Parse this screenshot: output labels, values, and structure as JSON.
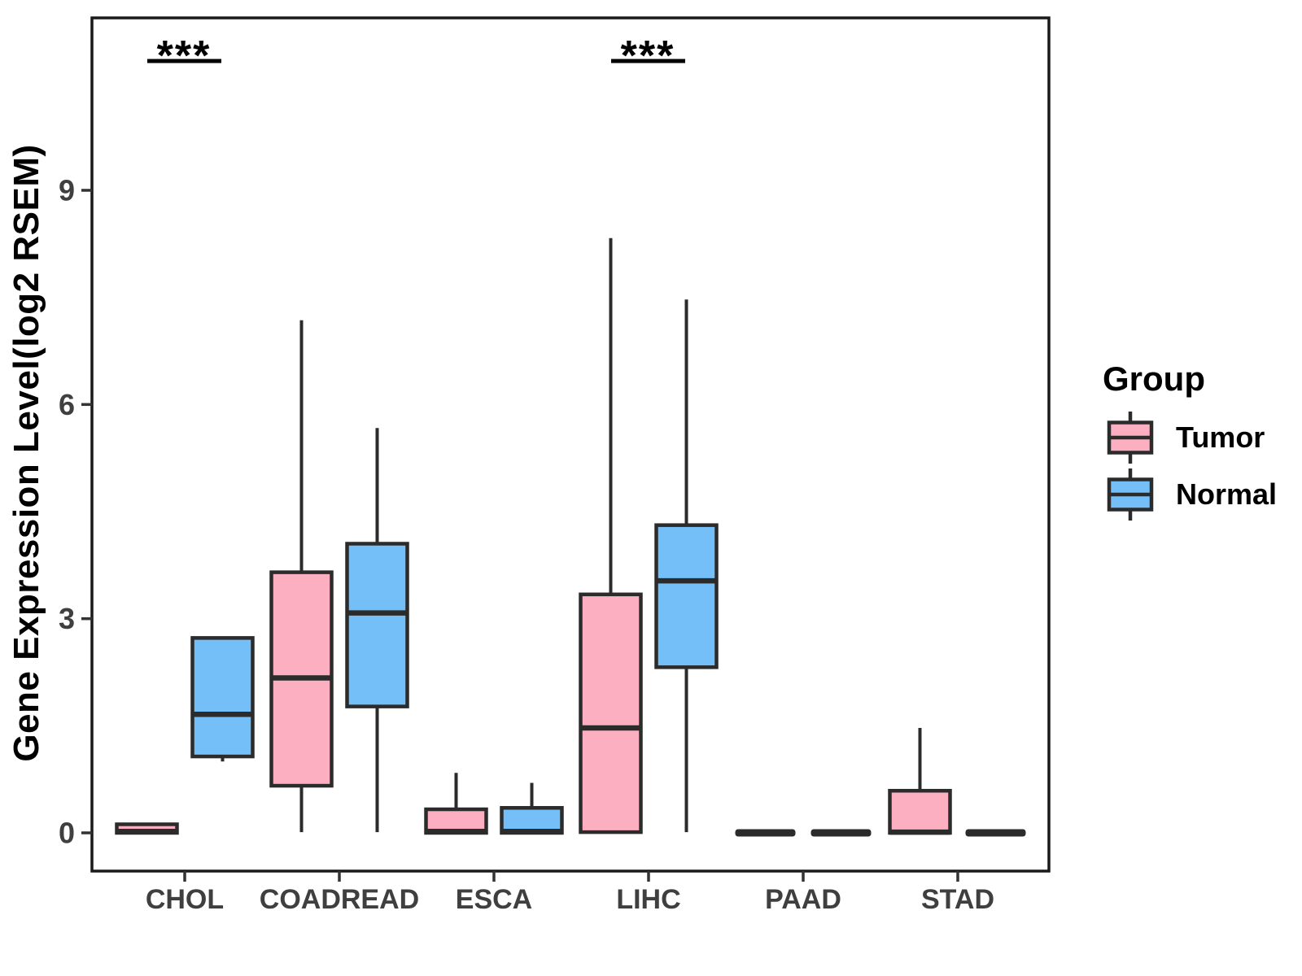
{
  "chart_data": {
    "type": "boxplot",
    "title": "",
    "xlabel": "",
    "ylabel": "Gene Expression Level(log2 RSEM)",
    "ylim": [
      -0.55,
      11.4
    ],
    "yticks": [
      0,
      3,
      6,
      9
    ],
    "grid": false,
    "categories": [
      "CHOL",
      "COADREAD",
      "ESCA",
      "LIHC",
      "PAAD",
      "STAD"
    ],
    "legend": {
      "title": "Group",
      "position": "right",
      "items": [
        {
          "label": "Tumor",
          "color": "#FBAFC0"
        },
        {
          "label": "Normal",
          "color": "#74BFF7"
        }
      ]
    },
    "colors": {
      "tumor_fill": "#FBAFC0",
      "normal_fill": "#74BFF7",
      "box_stroke": "#2B2B2B",
      "flat_bar": "#2B2B2B",
      "axis_text": "#3F3F3F",
      "axis_line": "#1A1A1A",
      "annotation": "#000000"
    },
    "series": [
      {
        "name": "Tumor",
        "fill": "#FBAFC0",
        "boxes": [
          {
            "category": "CHOL",
            "whisker_low": 0,
            "q1": 0,
            "median": 0.02,
            "q3": 0.12,
            "whisker_high": 0.12,
            "flat": false
          },
          {
            "category": "COADREAD",
            "whisker_low": 0.01,
            "q1": 0.66,
            "median": 2.17,
            "q3": 3.65,
            "whisker_high": 7.18,
            "flat": false
          },
          {
            "category": "ESCA",
            "whisker_low": 0,
            "q1": 0,
            "median": 0.02,
            "q3": 0.33,
            "whisker_high": 0.84,
            "flat": false
          },
          {
            "category": "LIHC",
            "whisker_low": 0,
            "q1": 0.01,
            "median": 1.47,
            "q3": 3.34,
            "whisker_high": 8.33,
            "flat": false
          },
          {
            "category": "PAAD",
            "whisker_low": 0,
            "q1": 0,
            "median": 0,
            "q3": 0,
            "whisker_high": 0,
            "flat": true
          },
          {
            "category": "STAD",
            "whisker_low": 0,
            "q1": 0,
            "median": 0.01,
            "q3": 0.59,
            "whisker_high": 1.47,
            "flat": false
          }
        ]
      },
      {
        "name": "Normal",
        "fill": "#74BFF7",
        "boxes": [
          {
            "category": "CHOL",
            "whisker_low": 1.0,
            "q1": 1.07,
            "median": 1.66,
            "q3": 2.73,
            "whisker_high": 2.73,
            "flat": false
          },
          {
            "category": "COADREAD",
            "whisker_low": 0.01,
            "q1": 1.77,
            "median": 3.08,
            "q3": 4.05,
            "whisker_high": 5.67,
            "flat": false
          },
          {
            "category": "ESCA",
            "whisker_low": 0,
            "q1": 0,
            "median": 0.02,
            "q3": 0.35,
            "whisker_high": 0.7,
            "flat": false
          },
          {
            "category": "LIHC",
            "whisker_low": 0.01,
            "q1": 2.32,
            "median": 3.53,
            "q3": 4.31,
            "whisker_high": 7.47,
            "flat": false
          },
          {
            "category": "PAAD",
            "whisker_low": 0,
            "q1": 0,
            "median": 0,
            "q3": 0,
            "whisker_high": 0,
            "flat": true
          },
          {
            "category": "STAD",
            "whisker_low": 0,
            "q1": 0,
            "median": 0,
            "q3": 0,
            "whisker_high": 0,
            "flat": true
          }
        ]
      }
    ],
    "annotations": [
      {
        "category": "CHOL",
        "label": "***"
      },
      {
        "category": "LIHC",
        "label": "***"
      }
    ]
  }
}
